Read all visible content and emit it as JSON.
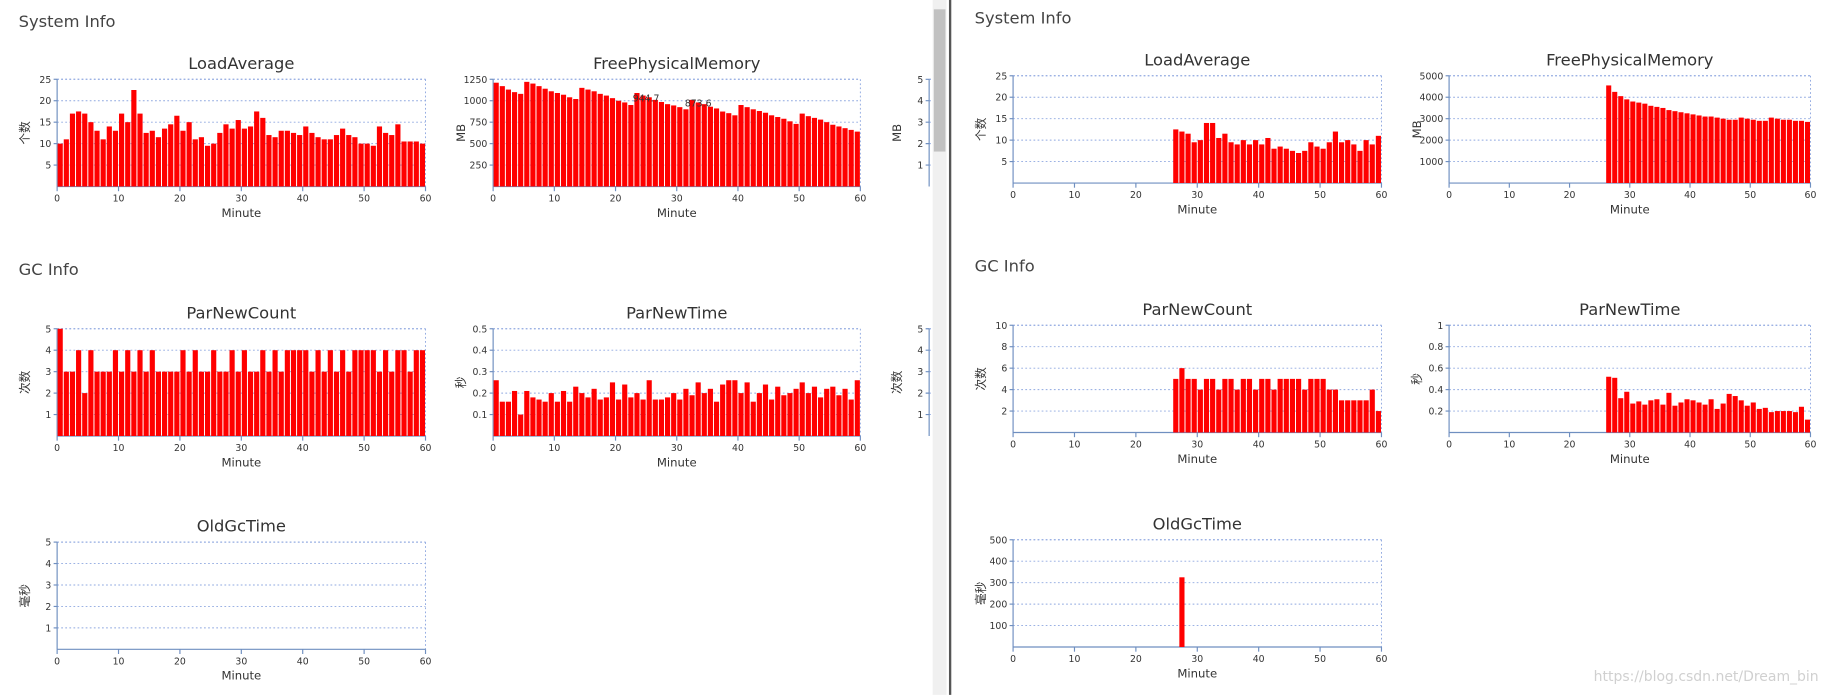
{
  "headings": [
    "System Info",
    "GC Info",
    "System Info",
    "GC Info"
  ],
  "watermark": "https://blog.csdn.net/Dream_bin",
  "chart_data": [
    {
      "type": "bar",
      "title": "LoadAverage",
      "y_label": "个数",
      "x_label": "Minute",
      "color": "#ff0000",
      "grid": true,
      "xlim": [
        0,
        60
      ],
      "xticks": [
        0,
        10,
        20,
        30,
        40,
        50,
        60
      ],
      "ylim": [
        0,
        25
      ],
      "yticks": [
        5,
        10,
        15,
        20,
        25
      ],
      "x": [
        1,
        2,
        3,
        4,
        5,
        6,
        7,
        8,
        9,
        10,
        11,
        12,
        13,
        14,
        15,
        16,
        17,
        18,
        19,
        20,
        21,
        22,
        23,
        24,
        25,
        26,
        27,
        28,
        29,
        30,
        31,
        32,
        33,
        34,
        35,
        36,
        37,
        38,
        39,
        40,
        41,
        42,
        43,
        44,
        45,
        46,
        47,
        48,
        49,
        50,
        51,
        52,
        53,
        54,
        55,
        56,
        57,
        58,
        59,
        60
      ],
      "values": [
        10,
        11,
        17,
        17.5,
        17,
        15,
        13,
        11,
        14,
        13,
        17,
        15,
        22.5,
        17,
        12.5,
        13,
        11.5,
        13.5,
        14.5,
        16.5,
        13,
        15,
        11,
        11.5,
        9.5,
        10,
        12.5,
        14.5,
        13.5,
        15.5,
        13.5,
        14,
        17.5,
        16,
        12,
        11.5,
        13,
        13,
        12.5,
        12,
        14,
        12.5,
        11.5,
        11,
        11,
        12,
        13.5,
        12,
        11.5,
        10,
        10,
        9.5,
        14,
        12.5,
        12,
        14.5,
        10.5,
        10.5,
        10.5,
        10
      ]
    },
    {
      "type": "bar",
      "title": "FreePhysicalMemory",
      "y_label": "MB",
      "x_label": "Minute",
      "color": "#ff0000",
      "grid": true,
      "xlim": [
        0,
        60
      ],
      "xticks": [
        0,
        10,
        20,
        30,
        40,
        50,
        60
      ],
      "ylim": [
        0,
        1250
      ],
      "yticks": [
        250,
        500,
        750,
        1000,
        1250
      ],
      "x": [
        1,
        2,
        3,
        4,
        5,
        6,
        7,
        8,
        9,
        10,
        11,
        12,
        13,
        14,
        15,
        16,
        17,
        18,
        19,
        20,
        21,
        22,
        23,
        24,
        25,
        26,
        27,
        28,
        29,
        30,
        31,
        32,
        33,
        34,
        35,
        36,
        37,
        38,
        39,
        40,
        41,
        42,
        43,
        44,
        45,
        46,
        47,
        48,
        49,
        50,
        51,
        52,
        53,
        54,
        55,
        56,
        57,
        58,
        59,
        60
      ],
      "values": [
        1210,
        1170,
        1130,
        1100,
        1080,
        1220,
        1200,
        1170,
        1140,
        1110,
        1090,
        1070,
        1040,
        1020,
        1150,
        1130,
        1110,
        1080,
        1060,
        1030,
        1000,
        980,
        950,
        1090,
        1060,
        1040,
        1010,
        985,
        960,
        945,
        925,
        900,
        1010,
        980,
        960,
        930,
        910,
        874,
        855,
        830,
        950,
        925,
        900,
        880,
        860,
        830,
        810,
        790,
        760,
        730,
        850,
        820,
        800,
        780,
        750,
        720,
        700,
        680,
        660,
        640
      ],
      "annotations": [
        {
          "text": "944.7",
          "x": 25,
          "y": 990
        },
        {
          "text": "873.6",
          "x": 33.5,
          "y": 930
        }
      ]
    },
    {
      "type": "bar",
      "y_label": "MB",
      "ylim": [
        0,
        5
      ],
      "yticks": [
        1,
        2,
        3,
        4,
        5
      ],
      "grid": true
    },
    {
      "type": "bar",
      "title": "ParNewCount",
      "y_label": "次数",
      "x_label": "Minute",
      "color": "#ff0000",
      "grid": true,
      "xlim": [
        0,
        60
      ],
      "xticks": [
        0,
        10,
        20,
        30,
        40,
        50,
        60
      ],
      "ylim": [
        0,
        5
      ],
      "yticks": [
        1,
        2,
        3,
        4,
        5
      ],
      "x": [
        1,
        2,
        3,
        4,
        5,
        6,
        7,
        8,
        9,
        10,
        11,
        12,
        13,
        14,
        15,
        16,
        17,
        18,
        19,
        20,
        21,
        22,
        23,
        24,
        25,
        26,
        27,
        28,
        29,
        30,
        31,
        32,
        33,
        34,
        35,
        36,
        37,
        38,
        39,
        40,
        41,
        42,
        43,
        44,
        45,
        46,
        47,
        48,
        49,
        50,
        51,
        52,
        53,
        54,
        55,
        56,
        57,
        58,
        59,
        60
      ],
      "values": [
        5,
        3,
        3,
        4,
        2,
        4,
        3,
        3,
        3,
        4,
        3,
        4,
        3,
        4,
        3,
        4,
        3,
        3,
        3,
        3,
        4,
        3,
        4,
        3,
        3,
        4,
        3,
        3,
        4,
        3,
        4,
        3,
        3,
        4,
        3,
        4,
        3,
        4,
        4,
        4,
        4,
        3,
        4,
        3,
        4,
        3,
        4,
        3,
        4,
        4,
        4,
        4,
        3,
        4,
        3,
        4,
        4,
        3,
        4,
        4
      ]
    },
    {
      "type": "bar",
      "title": "ParNewTime",
      "y_label": "秒",
      "x_label": "Minute",
      "color": "#ff0000",
      "grid": true,
      "xlim": [
        0,
        60
      ],
      "xticks": [
        0,
        10,
        20,
        30,
        40,
        50,
        60
      ],
      "ylim": [
        0,
        0.5
      ],
      "yticks": [
        0.1,
        0.2,
        0.3,
        0.4,
        0.5
      ],
      "x": [
        1,
        2,
        3,
        4,
        5,
        6,
        7,
        8,
        9,
        10,
        11,
        12,
        13,
        14,
        15,
        16,
        17,
        18,
        19,
        20,
        21,
        22,
        23,
        24,
        25,
        26,
        27,
        28,
        29,
        30,
        31,
        32,
        33,
        34,
        35,
        36,
        37,
        38,
        39,
        40,
        41,
        42,
        43,
        44,
        45,
        46,
        47,
        48,
        49,
        50,
        51,
        52,
        53,
        54,
        55,
        56,
        57,
        58,
        59,
        60
      ],
      "values": [
        0.26,
        0.16,
        0.16,
        0.21,
        0.1,
        0.21,
        0.18,
        0.17,
        0.16,
        0.2,
        0.16,
        0.21,
        0.16,
        0.23,
        0.2,
        0.18,
        0.22,
        0.17,
        0.18,
        0.25,
        0.17,
        0.24,
        0.18,
        0.2,
        0.17,
        0.26,
        0.17,
        0.17,
        0.18,
        0.2,
        0.17,
        0.22,
        0.19,
        0.25,
        0.2,
        0.22,
        0.16,
        0.24,
        0.26,
        0.26,
        0.2,
        0.25,
        0.16,
        0.2,
        0.24,
        0.17,
        0.23,
        0.19,
        0.2,
        0.22,
        0.25,
        0.2,
        0.23,
        0.18,
        0.22,
        0.23,
        0.19,
        0.22,
        0.17,
        0.26
      ]
    },
    {
      "type": "bar",
      "y_label": "次数",
      "ylim": [
        0,
        5
      ],
      "yticks": [
        1,
        2,
        3,
        4,
        5
      ],
      "grid": true
    },
    {
      "type": "bar",
      "title": "OldGcTime",
      "y_label": "毫秒",
      "x_label": "Minute",
      "color": "#ff0000",
      "grid": true,
      "xlim": [
        0,
        60
      ],
      "xticks": [
        0,
        10,
        20,
        30,
        40,
        50,
        60
      ],
      "ylim": [
        0,
        5
      ],
      "yticks": [
        1,
        2,
        3,
        4,
        5
      ]
    },
    {
      "type": "bar",
      "title": "LoadAverage",
      "y_label": "个数",
      "x_label": "Minute",
      "color": "#ff0000",
      "grid": true,
      "xlim": [
        0,
        60
      ],
      "xticks": [
        0,
        10,
        20,
        30,
        40,
        50,
        60
      ],
      "ylim": [
        0,
        25
      ],
      "yticks": [
        5,
        10,
        15,
        20,
        25
      ],
      "x": [
        27,
        28,
        29,
        30,
        31,
        32,
        33,
        34,
        35,
        36,
        37,
        38,
        39,
        40,
        41,
        42,
        43,
        44,
        45,
        46,
        47,
        48,
        49,
        50,
        51,
        52,
        53,
        54,
        55,
        56,
        57,
        58,
        59,
        60
      ],
      "values": [
        12.5,
        12,
        11.5,
        9.5,
        10,
        14,
        14,
        10.5,
        11.5,
        9.5,
        9,
        10,
        9,
        10,
        9,
        10.5,
        8,
        8.5,
        8,
        7.5,
        7,
        7.5,
        9.5,
        8.5,
        8,
        9.5,
        12,
        9.5,
        10,
        9,
        7.5,
        10,
        9,
        11
      ]
    },
    {
      "type": "bar",
      "title": "FreePhysicalMemory",
      "y_label": "MB",
      "x_label": "Minute",
      "color": "#ff0000",
      "grid": true,
      "xlim": [
        0,
        60
      ],
      "xticks": [
        0,
        10,
        20,
        30,
        40,
        50,
        60
      ],
      "ylim": [
        0,
        5000
      ],
      "yticks": [
        1000,
        2000,
        3000,
        4000,
        5000
      ],
      "x": [
        27,
        28,
        29,
        30,
        31,
        32,
        33,
        34,
        35,
        36,
        37,
        38,
        39,
        40,
        41,
        42,
        43,
        44,
        45,
        46,
        47,
        48,
        49,
        50,
        51,
        52,
        53,
        54,
        55,
        56,
        57,
        58,
        59,
        60
      ],
      "values": [
        4550,
        4250,
        4050,
        3900,
        3800,
        3750,
        3700,
        3600,
        3550,
        3500,
        3400,
        3350,
        3300,
        3250,
        3200,
        3150,
        3100,
        3100,
        3050,
        3000,
        2950,
        2950,
        3050,
        3000,
        2950,
        2900,
        2900,
        3050,
        3000,
        2950,
        2950,
        2900,
        2900,
        2850
      ]
    },
    {
      "type": "bar",
      "title": "ParNewCount",
      "y_label": "次数",
      "x_label": "Minute",
      "color": "#ff0000",
      "grid": true,
      "xlim": [
        0,
        60
      ],
      "xticks": [
        0,
        10,
        20,
        30,
        40,
        50,
        60
      ],
      "ylim": [
        0,
        10
      ],
      "yticks": [
        2,
        4,
        6,
        8,
        10
      ],
      "x": [
        27,
        28,
        29,
        30,
        31,
        32,
        33,
        34,
        35,
        36,
        37,
        38,
        39,
        40,
        41,
        42,
        43,
        44,
        45,
        46,
        47,
        48,
        49,
        50,
        51,
        52,
        53,
        54,
        55,
        56,
        57,
        58,
        59,
        60
      ],
      "values": [
        5,
        6,
        5,
        5,
        4,
        5,
        5,
        4,
        5,
        5,
        4,
        5,
        5,
        4,
        5,
        5,
        4,
        5,
        5,
        5,
        5,
        4,
        5,
        5,
        5,
        4,
        4,
        3,
        3,
        3,
        3,
        3,
        4,
        2
      ]
    },
    {
      "type": "bar",
      "title": "ParNewTime",
      "y_label": "秒",
      "x_label": "Minute",
      "color": "#ff0000",
      "grid": true,
      "xlim": [
        0,
        60
      ],
      "xticks": [
        0,
        10,
        20,
        30,
        40,
        50,
        60
      ],
      "ylim": [
        0,
        1
      ],
      "yticks": [
        0.2,
        0.4,
        0.6,
        0.8,
        1
      ],
      "x": [
        27,
        28,
        29,
        30,
        31,
        32,
        33,
        34,
        35,
        36,
        37,
        38,
        39,
        40,
        41,
        42,
        43,
        44,
        45,
        46,
        47,
        48,
        49,
        50,
        51,
        52,
        53,
        54,
        55,
        56,
        57,
        58,
        59,
        60
      ],
      "values": [
        0.52,
        0.51,
        0.32,
        0.38,
        0.27,
        0.29,
        0.26,
        0.3,
        0.31,
        0.26,
        0.37,
        0.25,
        0.28,
        0.31,
        0.3,
        0.28,
        0.26,
        0.31,
        0.22,
        0.27,
        0.36,
        0.34,
        0.3,
        0.25,
        0.28,
        0.22,
        0.23,
        0.19,
        0.2,
        0.2,
        0.2,
        0.19,
        0.24,
        0.12
      ]
    },
    {
      "type": "bar",
      "title": "OldGcTime",
      "y_label": "毫秒",
      "x_label": "Minute",
      "color": "#ff0000",
      "grid": true,
      "xlim": [
        0,
        60
      ],
      "xticks": [
        0,
        10,
        20,
        30,
        40,
        50,
        60
      ],
      "ylim": [
        0,
        500
      ],
      "yticks": [
        100,
        200,
        300,
        400,
        500
      ],
      "x": [
        28
      ],
      "values": [
        325
      ]
    }
  ]
}
